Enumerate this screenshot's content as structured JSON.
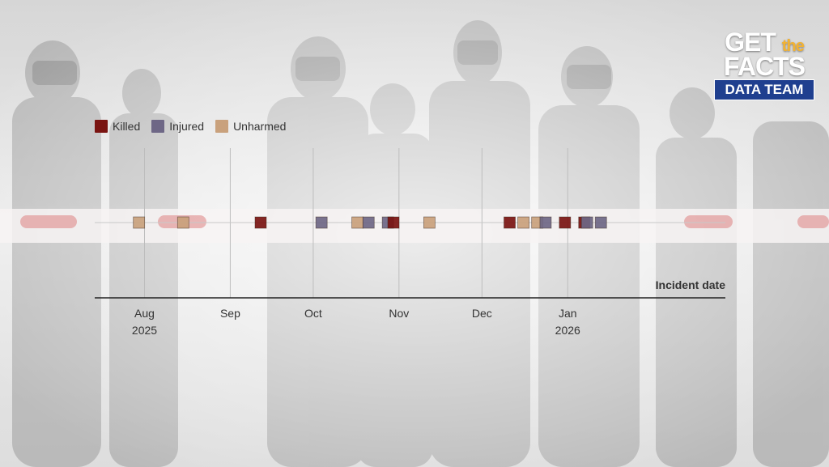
{
  "logo": {
    "line1_prefix": "GET",
    "line1_suffix": "the",
    "line2": "FACTS",
    "badge": "DATA TEAM"
  },
  "legend": [
    {
      "label": "Killed",
      "color": "#7a1411"
    },
    {
      "label": "Injured",
      "color": "#6e6786"
    },
    {
      "label": "Unharmed",
      "color": "#c9a17c"
    }
  ],
  "chart_data": {
    "type": "scatter",
    "xlabel": "Incident date",
    "x_ticks": [
      {
        "label": "Aug",
        "sub": "2025",
        "date": "2025-08-01"
      },
      {
        "label": "Sep",
        "sub": "",
        "date": "2025-09-01"
      },
      {
        "label": "Oct",
        "sub": "",
        "date": "2025-10-01"
      },
      {
        "label": "Nov",
        "sub": "",
        "date": "2025-11-01"
      },
      {
        "label": "Dec",
        "sub": "",
        "date": "2025-12-01"
      },
      {
        "label": "Jan",
        "sub": "2026",
        "date": "2026-01-01"
      }
    ],
    "xlim": [
      "2025-07-14",
      "2026-02-27"
    ],
    "grid": true,
    "legend_position": "top-left",
    "incidents": [
      {
        "date": "2025-07-30",
        "outcome": "Unharmed"
      },
      {
        "date": "2025-08-15",
        "outcome": "Unharmed"
      },
      {
        "date": "2025-09-12",
        "outcome": "Killed"
      },
      {
        "date": "2025-10-04",
        "outcome": "Injured"
      },
      {
        "date": "2025-10-17",
        "outcome": "Unharmed"
      },
      {
        "date": "2025-10-21",
        "outcome": "Injured"
      },
      {
        "date": "2025-10-28",
        "outcome": "Injured"
      },
      {
        "date": "2025-10-30",
        "outcome": "Killed"
      },
      {
        "date": "2025-11-12",
        "outcome": "Unharmed"
      },
      {
        "date": "2025-12-11",
        "outcome": "Killed"
      },
      {
        "date": "2025-12-16",
        "outcome": "Unharmed"
      },
      {
        "date": "2025-12-21",
        "outcome": "Unharmed"
      },
      {
        "date": "2025-12-24",
        "outcome": "Injured"
      },
      {
        "date": "2025-12-31",
        "outcome": "Killed"
      },
      {
        "date": "2026-01-07",
        "outcome": "Killed"
      },
      {
        "date": "2026-01-08",
        "outcome": "Injured"
      },
      {
        "date": "2026-01-13",
        "outcome": "Injured"
      }
    ]
  }
}
